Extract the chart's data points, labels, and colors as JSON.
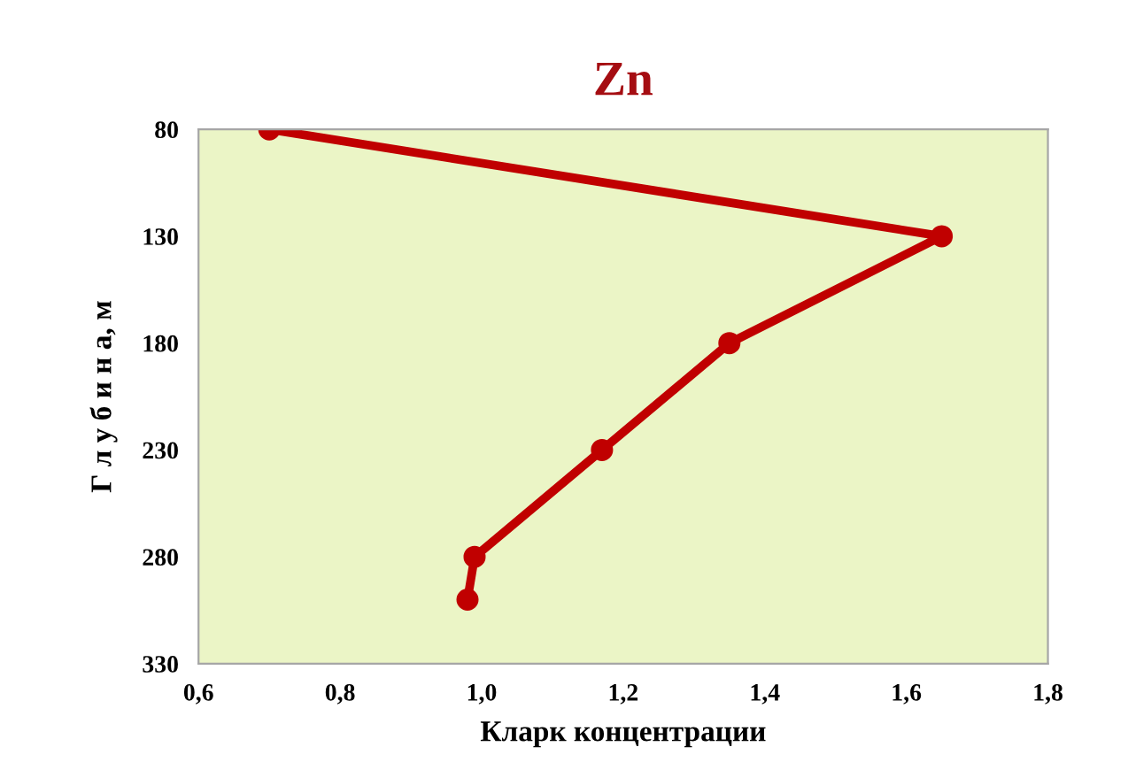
{
  "chart_data": {
    "type": "line",
    "title": "Zn",
    "xlabel": "Кларк концентрации",
    "ylabel": "Г л у б и н а, м",
    "x": [
      0.7,
      1.65,
      1.35,
      1.17,
      0.99,
      0.98
    ],
    "series": [
      {
        "color": "#c00000",
        "values": [
          80,
          130,
          180,
          230,
          280,
          300
        ]
      }
    ],
    "xlim": [
      0.6,
      1.8
    ],
    "xticks": [
      {
        "value": 0.6,
        "label": "0,6"
      },
      {
        "value": 0.8,
        "label": "0,8"
      },
      {
        "value": 1.0,
        "label": "1,0"
      },
      {
        "value": 1.2,
        "label": "1,2"
      },
      {
        "value": 1.4,
        "label": "1,4"
      },
      {
        "value": 1.6,
        "label": "1,6"
      },
      {
        "value": 1.8,
        "label": "1,8"
      }
    ],
    "ylim": [
      330,
      80
    ],
    "yticks": [
      80,
      130,
      180,
      230,
      280,
      330
    ],
    "grid": false,
    "marker": "circle",
    "line_style": "solid"
  }
}
